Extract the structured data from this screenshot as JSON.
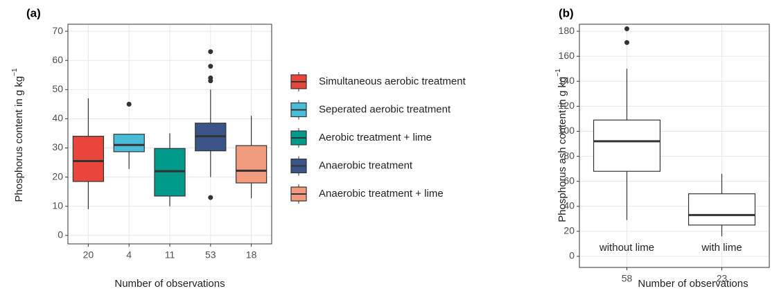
{
  "chart_data": [
    {
      "type": "box",
      "panel_label": "(a)",
      "xlabel": "Number of observations",
      "ylabel": "Phosphorus content in g  kg",
      "ylabel_sup": "−1",
      "categories": [
        "20",
        "4",
        "11",
        "53",
        "18"
      ],
      "ylim": [
        -2.9,
        72.4
      ],
      "yticks": [
        0,
        10,
        20,
        30,
        40,
        50,
        60,
        70
      ],
      "grid": true,
      "legend": "right",
      "boxes": [
        {
          "name": "Simultaneous aerobic treatment",
          "color": "#e8463a",
          "min": 9,
          "q1": 18.5,
          "median": 25.5,
          "q3": 34,
          "max": 47,
          "outliers": []
        },
        {
          "name": "Seperated aerobic treatment",
          "color": "#4bbcd8",
          "min": 22.8,
          "q1": 28.7,
          "median": 31,
          "q3": 34.7,
          "max": 34.7,
          "outliers": [
            45
          ]
        },
        {
          "name": "Aerobic treatment + lime",
          "color": "#00998a",
          "min": 10,
          "q1": 13.5,
          "median": 22,
          "q3": 29.8,
          "max": 35,
          "outliers": []
        },
        {
          "name": "Anaerobic treatment",
          "color": "#3b5488",
          "min": 20,
          "q1": 29,
          "median": 34,
          "q3": 38.5,
          "max": 50,
          "outliers": [
            13,
            53,
            54,
            58,
            63
          ]
        },
        {
          "name": "Anaerobic treatment + lime",
          "color": "#f39b7f",
          "min": 12.7,
          "q1": 18,
          "median": 22.2,
          "q3": 30.8,
          "max": 41,
          "outliers": []
        }
      ]
    },
    {
      "type": "box",
      "panel_label": "(b)",
      "xlabel": "Number of observations",
      "ylabel": "Phosphorus ash content in g  kg",
      "ylabel_sup": "−1",
      "categories": [
        "58",
        "23"
      ],
      "ylim": [
        -8.9,
        185.6
      ],
      "yticks": [
        0,
        20,
        40,
        60,
        80,
        100,
        120,
        140,
        160,
        180
      ],
      "grid": true,
      "boxes": [
        {
          "label": "without lime",
          "color": "#ffffff",
          "min": 29,
          "q1": 68,
          "median": 92,
          "q3": 109,
          "max": 150,
          "outliers": [
            171,
            182
          ]
        },
        {
          "label": "with lime",
          "color": "#ffffff",
          "min": 16,
          "q1": 25,
          "median": 33,
          "q3": 50,
          "max": 66,
          "outliers": []
        }
      ]
    }
  ]
}
